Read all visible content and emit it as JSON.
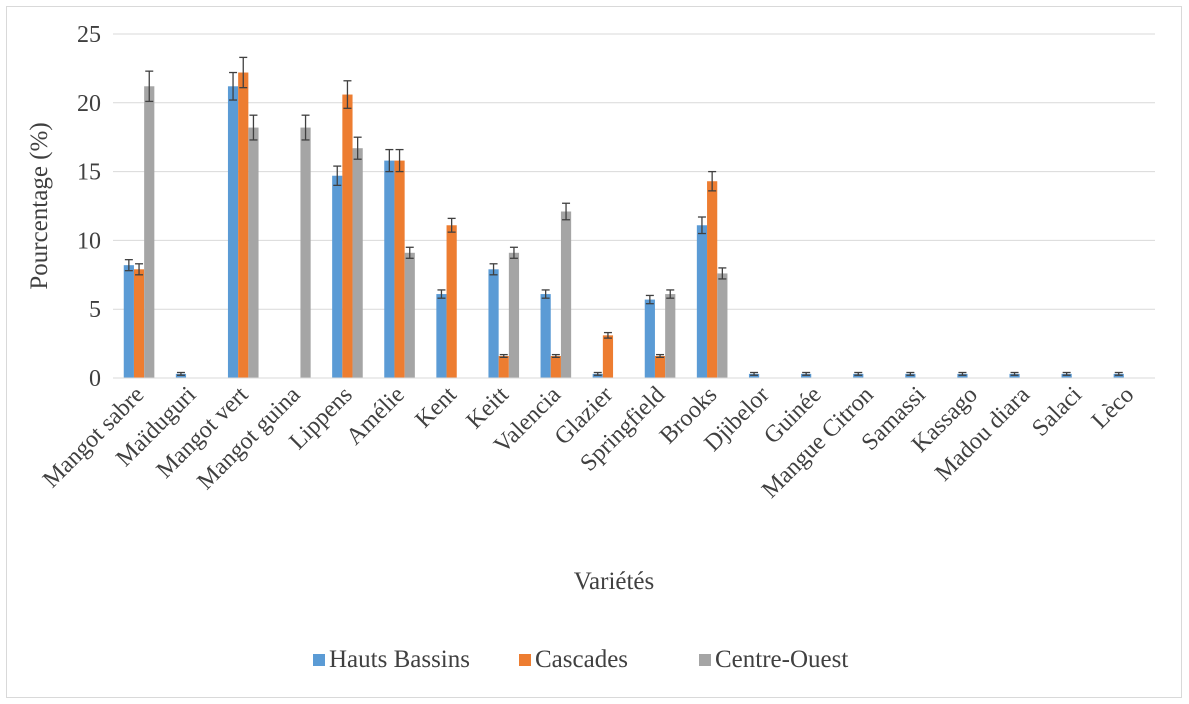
{
  "chart_data": {
    "type": "bar",
    "title": "",
    "xlabel": "Variétés",
    "ylabel": "Pourcentage (%)",
    "ylim": [
      0,
      25
    ],
    "yticks": [
      0,
      5,
      10,
      15,
      20,
      25
    ],
    "grid": true,
    "legend_position": "bottom",
    "categories": [
      "Mangot sabre",
      "Maïduguri",
      "Mangot vert",
      "Mangot guina",
      "Lippens",
      "Amélie",
      "Kent",
      "Keitt",
      "Valencia",
      "Glazier",
      "Springfield",
      "Brooks",
      "Djibelor",
      "Guinée",
      "Mangue Citron",
      "Samassi",
      "Kassago",
      "Madou diara",
      "Salaci",
      "Lèco"
    ],
    "series": [
      {
        "name": "Hauts Bassins",
        "color": "#5b9bd5",
        "values": [
          8.2,
          0.3,
          21.2,
          0,
          14.7,
          15.8,
          6.1,
          7.9,
          6.1,
          0.3,
          5.7,
          11.1,
          0.3,
          0.3,
          0.3,
          0.3,
          0.3,
          0.3,
          0.3,
          0.3
        ],
        "errors": [
          0.4,
          0.1,
          1.0,
          0,
          0.7,
          0.8,
          0.3,
          0.4,
          0.3,
          0.1,
          0.3,
          0.6,
          0.1,
          0.1,
          0.1,
          0.1,
          0.1,
          0.1,
          0.1,
          0.1
        ]
      },
      {
        "name": "Cascades",
        "color": "#ed7d31",
        "values": [
          7.9,
          0,
          22.2,
          0,
          20.6,
          15.8,
          11.1,
          1.6,
          1.6,
          3.1,
          1.6,
          14.3,
          0,
          0,
          0,
          0,
          0,
          0,
          0,
          0
        ],
        "errors": [
          0.4,
          0,
          1.1,
          0,
          1.0,
          0.8,
          0.5,
          0.1,
          0.1,
          0.2,
          0.1,
          0.7,
          0,
          0,
          0,
          0,
          0,
          0,
          0,
          0
        ]
      },
      {
        "name": "Centre-Ouest",
        "color": "#a5a5a5",
        "values": [
          21.2,
          0,
          18.2,
          18.2,
          16.7,
          9.1,
          0,
          9.1,
          12.1,
          0,
          6.1,
          7.6,
          0,
          0,
          0,
          0,
          0,
          0,
          0,
          0
        ],
        "errors": [
          1.1,
          0,
          0.9,
          0.9,
          0.8,
          0.4,
          0,
          0.4,
          0.6,
          0,
          0.3,
          0.4,
          0,
          0,
          0,
          0,
          0,
          0,
          0,
          0
        ]
      }
    ]
  }
}
